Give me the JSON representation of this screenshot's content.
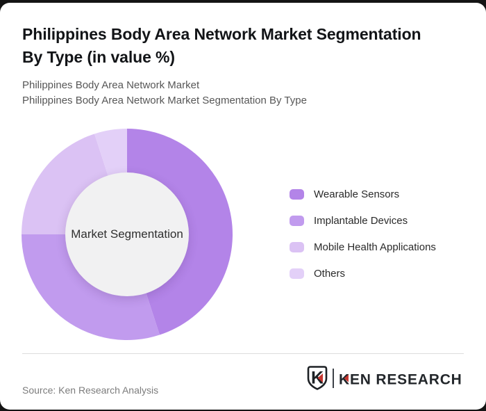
{
  "page": {
    "background_color": "#141414",
    "card_color": "#ffffff"
  },
  "header": {
    "title": "Philippines Body Area Network Market Segmentation\nBy Type (in value %)",
    "subtitle_line1": "Philippines Body Area Network Market",
    "subtitle_line2": "Philippines Body Area Network Market Segmentation By Type"
  },
  "chart_data": {
    "type": "pie",
    "variant": "donut",
    "title": "Philippines Body Area Network Market Segmentation By Type (in value %)",
    "center_label": "Market Segmentation",
    "unit": "value %",
    "categories": [
      "Wearable Sensors",
      "Implantable Devices",
      "Mobile Health Applications",
      "Others"
    ],
    "values": [
      45,
      30,
      20,
      5
    ],
    "colors": [
      "#b384e8",
      "#c19bee",
      "#dbc2f4",
      "#e3d0f8"
    ],
    "hole_color": "#f1f1f2",
    "start_angle_deg": 0,
    "direction": "clockwise",
    "legend_position": "right",
    "data_labels": false
  },
  "footer": {
    "source": "Source: Ken Research Analysis",
    "logo_emblem_letter": "K",
    "logo_text": "KEN RESEARCH",
    "logo_ink": "#23272b",
    "logo_red": "#c5352f"
  }
}
